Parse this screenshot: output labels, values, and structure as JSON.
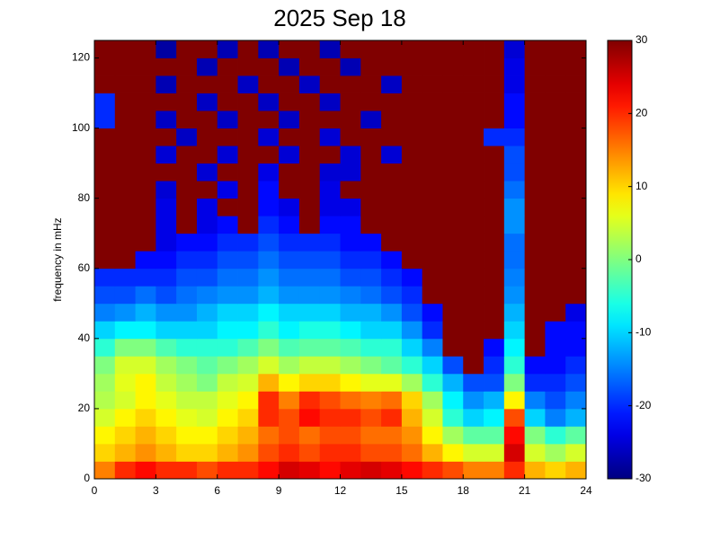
{
  "chart_data": {
    "type": "heatmap",
    "title": "2025 Sep 18",
    "y_label": "frequency in mHz",
    "colormap": "jet",
    "x": [
      0,
      1,
      2,
      3,
      4,
      5,
      6,
      7,
      8,
      9,
      10,
      11,
      12,
      13,
      14,
      15,
      16,
      17,
      18,
      19,
      20,
      21,
      22,
      23,
      24
    ],
    "y": [
      0,
      5,
      10,
      15,
      20,
      25,
      30,
      35,
      40,
      45,
      50,
      55,
      60,
      65,
      70,
      75,
      80,
      85,
      90,
      95,
      100,
      105,
      110,
      115,
      120,
      125
    ],
    "xlim": [
      0,
      24
    ],
    "xticks": [
      0,
      3,
      6,
      9,
      12,
      15,
      18,
      21,
      24
    ],
    "ylim": [
      0,
      125
    ],
    "yticks": [
      0,
      20,
      40,
      60,
      80,
      100,
      120
    ],
    "clim": [
      -30,
      30
    ],
    "cticks": [
      -30,
      -20,
      -10,
      0,
      10,
      20,
      30
    ],
    "values": [
      [
        15,
        20,
        22,
        20,
        20,
        18,
        20,
        20,
        22,
        25,
        24,
        22,
        24,
        25,
        24,
        22,
        20,
        18,
        15,
        15,
        20,
        12,
        10,
        12
      ],
      [
        10,
        12,
        14,
        12,
        10,
        10,
        12,
        14,
        18,
        20,
        18,
        20,
        20,
        18,
        18,
        16,
        12,
        8,
        5,
        5,
        25,
        5,
        2,
        5
      ],
      [
        8,
        10,
        12,
        10,
        8,
        8,
        10,
        12,
        16,
        18,
        16,
        18,
        18,
        16,
        16,
        14,
        8,
        2,
        -2,
        -2,
        22,
        0,
        -5,
        -2
      ],
      [
        5,
        8,
        10,
        8,
        6,
        5,
        8,
        10,
        20,
        18,
        22,
        20,
        20,
        18,
        20,
        12,
        5,
        -5,
        -10,
        -8,
        18,
        -10,
        -15,
        -12
      ],
      [
        3,
        5,
        8,
        6,
        4,
        4,
        6,
        8,
        20,
        15,
        20,
        18,
        16,
        15,
        16,
        10,
        2,
        -8,
        -14,
        -12,
        8,
        -15,
        -18,
        -15
      ],
      [
        2,
        6,
        8,
        4,
        2,
        0,
        4,
        5,
        12,
        8,
        10,
        10,
        8,
        6,
        6,
        2,
        -5,
        -12,
        -18,
        -18,
        0,
        -20,
        -20,
        -18
      ],
      [
        0,
        5,
        5,
        2,
        0,
        -2,
        0,
        2,
        5,
        2,
        4,
        4,
        2,
        0,
        -2,
        -5,
        -10,
        -18,
        30,
        -20,
        -5,
        -22,
        -22,
        -20
      ],
      [
        -5,
        0,
        0,
        -3,
        -5,
        -5,
        -5,
        -3,
        0,
        -3,
        -2,
        -2,
        -3,
        -5,
        -5,
        -10,
        -15,
        30,
        30,
        -22,
        -8,
        30,
        -22,
        -22
      ],
      [
        -10,
        -8,
        -8,
        -10,
        -10,
        -10,
        -8,
        -8,
        -5,
        -8,
        -6,
        -6,
        -8,
        -10,
        -10,
        -14,
        -20,
        30,
        30,
        30,
        -10,
        30,
        -22,
        -22
      ],
      [
        -15,
        -14,
        -12,
        -14,
        -14,
        -12,
        -10,
        -10,
        -8,
        -10,
        -10,
        -10,
        -12,
        -12,
        -14,
        -18,
        -22,
        30,
        30,
        30,
        -12,
        30,
        30,
        -24
      ],
      [
        -18,
        -18,
        -16,
        -18,
        -16,
        -15,
        -14,
        -14,
        -12,
        -14,
        -14,
        -14,
        -15,
        -16,
        -18,
        -20,
        30,
        30,
        30,
        30,
        -14,
        30,
        30,
        30
      ],
      [
        -20,
        -20,
        -20,
        -20,
        -18,
        -18,
        -16,
        -16,
        -14,
        -16,
        -16,
        -16,
        -18,
        -18,
        -20,
        -22,
        30,
        30,
        30,
        30,
        -15,
        30,
        30,
        30
      ],
      [
        30,
        30,
        -22,
        -22,
        -20,
        -20,
        -18,
        -18,
        -16,
        -18,
        -18,
        -18,
        -20,
        -20,
        -22,
        30,
        30,
        30,
        30,
        30,
        -16,
        30,
        30,
        30
      ],
      [
        30,
        30,
        30,
        -24,
        -22,
        -22,
        -20,
        -20,
        -18,
        -20,
        -20,
        -20,
        -22,
        -22,
        30,
        30,
        30,
        30,
        30,
        30,
        -16,
        30,
        30,
        30
      ],
      [
        30,
        30,
        30,
        -24,
        30,
        -24,
        -22,
        30,
        -20,
        -22,
        30,
        -22,
        -22,
        30,
        30,
        30,
        30,
        30,
        30,
        30,
        -14,
        30,
        30,
        30
      ],
      [
        30,
        30,
        30,
        -24,
        30,
        -24,
        30,
        30,
        -22,
        -24,
        30,
        -24,
        -24,
        30,
        30,
        30,
        30,
        30,
        30,
        30,
        -14,
        30,
        30,
        30
      ],
      [
        30,
        30,
        30,
        -25,
        30,
        30,
        -24,
        30,
        -22,
        30,
        30,
        -24,
        30,
        30,
        30,
        30,
        30,
        30,
        30,
        30,
        -16,
        30,
        30,
        30
      ],
      [
        30,
        30,
        30,
        30,
        30,
        -25,
        30,
        30,
        -24,
        30,
        30,
        -25,
        -25,
        30,
        30,
        30,
        30,
        30,
        30,
        30,
        -18,
        30,
        30,
        30
      ],
      [
        30,
        30,
        30,
        -25,
        30,
        30,
        -25,
        30,
        30,
        -25,
        30,
        30,
        -25,
        30,
        -25,
        30,
        30,
        30,
        30,
        30,
        -18,
        30,
        30,
        30
      ],
      [
        30,
        30,
        30,
        30,
        -26,
        30,
        30,
        30,
        -25,
        30,
        30,
        -25,
        30,
        30,
        30,
        30,
        30,
        30,
        30,
        -20,
        -20,
        30,
        30,
        30
      ],
      [
        -20,
        30,
        30,
        -26,
        30,
        30,
        -26,
        30,
        30,
        -26,
        30,
        30,
        30,
        -26,
        30,
        30,
        30,
        30,
        30,
        30,
        -22,
        30,
        30,
        30
      ],
      [
        -20,
        30,
        30,
        30,
        30,
        -26,
        30,
        30,
        -26,
        30,
        30,
        -26,
        30,
        30,
        30,
        30,
        30,
        30,
        30,
        30,
        -22,
        30,
        30,
        30
      ],
      [
        30,
        30,
        30,
        -27,
        30,
        30,
        30,
        -26,
        30,
        30,
        -26,
        30,
        30,
        30,
        -26,
        30,
        30,
        30,
        30,
        30,
        -24,
        30,
        30,
        30
      ],
      [
        30,
        30,
        30,
        30,
        30,
        -27,
        30,
        30,
        30,
        -27,
        30,
        30,
        -27,
        30,
        30,
        30,
        30,
        30,
        30,
        30,
        -24,
        30,
        30,
        30
      ],
      [
        30,
        30,
        30,
        -28,
        30,
        30,
        -27,
        30,
        -27,
        30,
        30,
        -27,
        30,
        30,
        30,
        30,
        30,
        30,
        30,
        30,
        -25,
        30,
        30,
        30
      ]
    ]
  }
}
